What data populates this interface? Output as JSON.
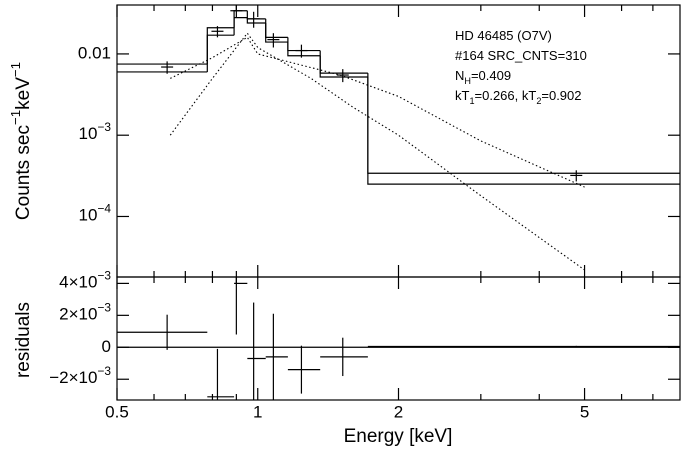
{
  "chart_data": {
    "type": "spectrum",
    "xlabel": "Energy [keV]",
    "ylabel": [
      "Counts sec",
      "−1",
      "keV",
      "−1"
    ],
    "y2label": "residuals",
    "annotation": [
      [
        "HD 46485 (O7V)"
      ],
      [
        "#164 SRC_CNTS=310"
      ],
      [
        "N",
        "H",
        "=0.409"
      ],
      [
        "kT",
        "1",
        "=0.266, kT",
        "2",
        "=0.902"
      ]
    ],
    "xscale": "log",
    "yscale": "log",
    "xlim": [
      0.5,
      8
    ],
    "xticks": [
      0.5,
      1,
      2,
      5
    ],
    "xminorticks": [
      0.6,
      0.7,
      0.8,
      0.9,
      3,
      4,
      6,
      7
    ],
    "ylim": [
      1.8e-05,
      0.04
    ],
    "yticks": [
      0.01,
      {
        "value": 0.001,
        "label": "10",
        "exp": "−3"
      },
      {
        "value": 0.0001,
        "label": "10",
        "exp": "−4"
      }
    ],
    "y2lim": [
      -0.0033,
      0.0044
    ],
    "y2ticks": [
      {
        "value": 0.004,
        "label": "4×10",
        "exp": "−3"
      },
      {
        "value": 0.002,
        "label": "2×10",
        "exp": "−3"
      },
      0,
      {
        "value": -0.002,
        "label": "−2×10",
        "exp": "−3"
      }
    ],
    "bins": [
      0.5,
      0.78,
      0.89,
      0.95,
      1.04,
      1.16,
      1.36,
      1.72,
      8
    ],
    "data_steps": [
      0.0075,
      0.021,
      0.034,
      0.027,
      0.016,
      0.011,
      0.0058,
      0.00034
    ],
    "model_steps": [
      0.006,
      0.017,
      0.028,
      0.024,
      0.014,
      0.0095,
      0.0052,
      0.00025
    ],
    "data_x": [
      0.64,
      0.82,
      0.9,
      0.98,
      1.08,
      1.24,
      1.52,
      4.8
    ],
    "data_values": [
      0.0069,
      0.019,
      0.034,
      0.027,
      0.015,
      0.011,
      0.0055,
      0.00032
    ],
    "data_errors": [
      0.0012,
      0.003,
      0.006,
      0.006,
      0.003,
      0.002,
      0.001,
      5e-05
    ],
    "components": [
      {
        "x": [
          0.65,
          0.8,
          0.95,
          1.0,
          1.3,
          1.6,
          2,
          3,
          5
        ],
        "values": [
          0.001,
          0.005,
          0.018,
          0.012,
          0.005,
          0.0022,
          0.001,
          0.00018,
          2.2e-05
        ]
      },
      {
        "x": [
          0.65,
          0.8,
          0.95,
          1.0,
          1.5,
          2,
          3,
          5
        ],
        "values": [
          0.005,
          0.009,
          0.016,
          0.01,
          0.0055,
          0.003,
          0.00085,
          0.00023
        ]
      }
    ],
    "residuals": [
      0.00094,
      -0.0031,
      0.004,
      -0.0007,
      -0.0006,
      -0.0014,
      -0.0006,
      5e-05
    ],
    "residual_errors": [
      0.0011,
      0.003,
      0.0032,
      0.0035,
      0.0027,
      0.0015,
      0.0012,
      4e-05
    ]
  }
}
